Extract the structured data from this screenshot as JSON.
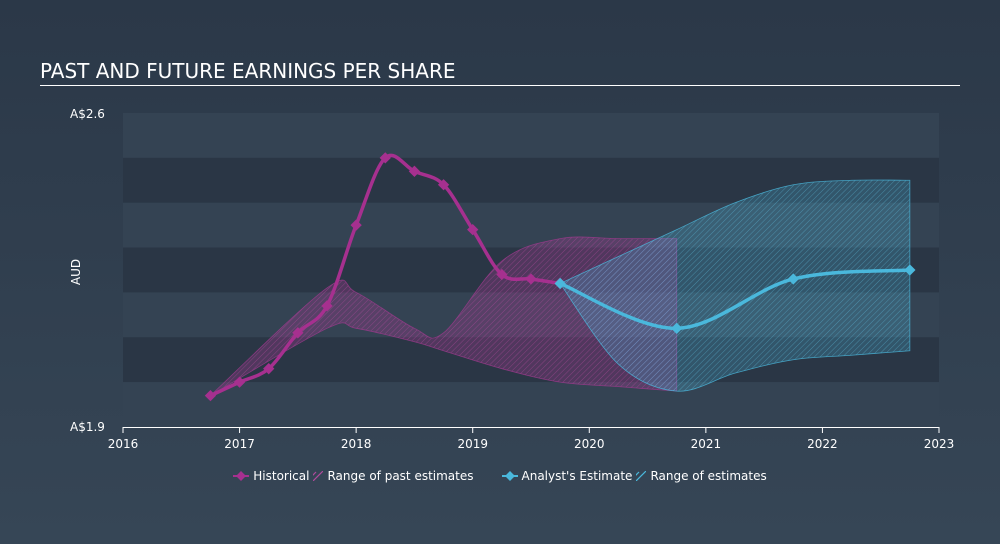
{
  "title": "PAST AND FUTURE EARNINGS PER SHARE",
  "colors": {
    "historical": "#a6308f",
    "past_range": "#9b3a8c",
    "estimate": "#4ab8dc",
    "est_range": "#4ab8dc",
    "band_dark": "#2a3645",
    "band_light": "#344353"
  },
  "legend": {
    "historical": "Historical",
    "past_range": "Range of past estimates",
    "estimate": "Analyst's Estimate",
    "est_range": "Range of estimates"
  },
  "chart_data": {
    "type": "line",
    "ylabel": "AUD",
    "y_tick_labels": [
      "A$2.6",
      "A$1.9"
    ],
    "ylim": [
      1.9,
      2.6
    ],
    "xlim": [
      2016,
      2023
    ],
    "x_ticks": [
      2016,
      2017,
      2018,
      2019,
      2020,
      2021,
      2022,
      2023
    ],
    "x_tick_labels": [
      "2016",
      "2017",
      "2018",
      "2019",
      "2020",
      "2021",
      "2022",
      "2023"
    ],
    "series": [
      {
        "name": "Historical",
        "x": [
          2016.75,
          2017.0,
          2017.25,
          2017.5,
          2017.75,
          2018.0,
          2018.25,
          2018.5,
          2018.75,
          2019.0,
          2019.25,
          2019.5,
          2019.75
        ],
        "y": [
          1.97,
          2.0,
          2.03,
          2.11,
          2.17,
          2.35,
          2.5,
          2.47,
          2.44,
          2.34,
          2.24,
          2.23,
          2.22
        ]
      },
      {
        "name": "Analyst's Estimate",
        "x": [
          2019.75,
          2020.75,
          2021.75,
          2022.75
        ],
        "y": [
          2.22,
          2.12,
          2.23,
          2.25
        ]
      }
    ],
    "past_range": {
      "x": [
        2016.75,
        2017.75,
        2018.0,
        2018.5,
        2018.75,
        2019.25,
        2019.75,
        2020.25,
        2020.75
      ],
      "upper": [
        1.97,
        2.21,
        2.2,
        2.12,
        2.11,
        2.27,
        2.32,
        2.32,
        2.32
      ],
      "lower": [
        1.97,
        2.12,
        2.12,
        2.09,
        2.07,
        2.03,
        2.0,
        1.99,
        1.98
      ]
    },
    "est_range": {
      "x": [
        2019.75,
        2020.25,
        2020.75,
        2021.25,
        2021.75,
        2022.25,
        2022.75
      ],
      "upper": [
        2.22,
        2.28,
        2.34,
        2.4,
        2.44,
        2.45,
        2.45
      ],
      "lower": [
        2.22,
        2.04,
        1.98,
        2.02,
        2.05,
        2.06,
        2.07
      ]
    },
    "grid": "banded",
    "legend_position": "bottom-center"
  }
}
